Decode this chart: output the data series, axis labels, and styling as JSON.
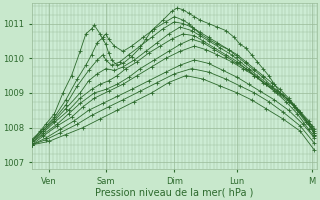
{
  "xlabel": "Pression niveau de la mer( hPa )",
  "bg_color": "#c8e8cc",
  "plot_bg_color": "#ccecd4",
  "line_color": "#2d6a2d",
  "grid_color": "#99bb99",
  "tick_color": "#2d6a2d",
  "ylim": [
    1006.8,
    1011.6
  ],
  "xlim": [
    0,
    5.0
  ],
  "yticks": [
    1007,
    1008,
    1009,
    1010,
    1011
  ],
  "xtick_labels": [
    "Ven",
    "Sam",
    "Dim",
    "Lun",
    "M"
  ],
  "xtick_positions": [
    0.3,
    1.3,
    2.5,
    3.6,
    4.9
  ],
  "series": [
    {
      "x": [
        0.0,
        0.15,
        0.25,
        0.4,
        0.55,
        0.7,
        0.85,
        0.95,
        1.05,
        1.1,
        1.2,
        1.25,
        1.3,
        1.35,
        1.4,
        1.5,
        1.6,
        1.75,
        1.9,
        2.0,
        2.1,
        2.3,
        2.45,
        2.55,
        2.65,
        2.75,
        2.85,
        2.95,
        3.1,
        3.25,
        3.4,
        3.55,
        3.65,
        3.75,
        3.85,
        3.95,
        4.05,
        4.15,
        4.25,
        4.35,
        4.5,
        4.65,
        4.85,
        4.95
      ],
      "y": [
        1007.6,
        1007.9,
        1008.1,
        1008.4,
        1009.0,
        1009.5,
        1010.2,
        1010.7,
        1010.85,
        1010.95,
        1010.7,
        1010.55,
        1010.4,
        1010.15,
        1009.95,
        1009.8,
        1009.85,
        1010.05,
        1010.3,
        1010.55,
        1010.8,
        1011.1,
        1011.35,
        1011.45,
        1011.4,
        1011.3,
        1011.2,
        1011.1,
        1011.0,
        1010.9,
        1010.8,
        1010.6,
        1010.4,
        1010.3,
        1010.1,
        1009.9,
        1009.7,
        1009.5,
        1009.25,
        1009.0,
        1008.8,
        1008.5,
        1008.1,
        1007.8
      ]
    },
    {
      "x": [
        0.0,
        0.2,
        0.4,
        0.6,
        0.8,
        0.95,
        1.05,
        1.15,
        1.25,
        1.3,
        1.35,
        1.45,
        1.6,
        1.75,
        1.95,
        2.15,
        2.35,
        2.5,
        2.65,
        2.75,
        2.85,
        2.95,
        3.1,
        3.25,
        3.45,
        3.6,
        3.75,
        3.9,
        4.05,
        4.2,
        4.35,
        4.5,
        4.65,
        4.85,
        4.95
      ],
      "y": [
        1007.65,
        1007.95,
        1008.3,
        1008.8,
        1009.4,
        1009.8,
        1010.1,
        1010.45,
        1010.6,
        1010.7,
        1010.55,
        1010.35,
        1010.2,
        1010.35,
        1010.6,
        1010.85,
        1011.05,
        1011.2,
        1011.1,
        1011.0,
        1010.85,
        1010.7,
        1010.55,
        1010.4,
        1010.25,
        1010.1,
        1009.9,
        1009.7,
        1009.5,
        1009.3,
        1009.1,
        1008.85,
        1008.55,
        1008.1,
        1007.85
      ]
    },
    {
      "x": [
        0.0,
        0.2,
        0.4,
        0.6,
        0.8,
        1.0,
        1.15,
        1.25,
        1.3,
        1.4,
        1.55,
        1.7,
        1.9,
        2.1,
        2.3,
        2.5,
        2.65,
        2.8,
        2.95,
        3.1,
        3.25,
        3.45,
        3.6,
        3.75,
        3.9,
        4.05,
        4.2,
        4.4,
        4.6,
        4.8,
        4.95
      ],
      "y": [
        1007.6,
        1007.9,
        1008.25,
        1008.65,
        1009.2,
        1009.65,
        1009.95,
        1010.1,
        1009.95,
        1009.8,
        1009.9,
        1010.1,
        1010.35,
        1010.6,
        1010.85,
        1011.05,
        1011.0,
        1010.9,
        1010.75,
        1010.6,
        1010.45,
        1010.25,
        1010.05,
        1009.85,
        1009.65,
        1009.45,
        1009.2,
        1008.95,
        1008.6,
        1008.15,
        1007.9
      ]
    },
    {
      "x": [
        0.0,
        0.2,
        0.4,
        0.6,
        0.85,
        1.0,
        1.15,
        1.3,
        1.45,
        1.6,
        1.8,
        2.0,
        2.2,
        2.4,
        2.6,
        2.8,
        2.95,
        3.1,
        3.3,
        3.5,
        3.65,
        3.8,
        3.95,
        4.1,
        4.3,
        4.5,
        4.7,
        4.9,
        4.95
      ],
      "y": [
        1007.6,
        1007.9,
        1008.2,
        1008.55,
        1009.0,
        1009.35,
        1009.55,
        1009.7,
        1009.65,
        1009.75,
        1009.95,
        1010.2,
        1010.45,
        1010.7,
        1010.9,
        1010.8,
        1010.65,
        1010.5,
        1010.3,
        1010.1,
        1009.9,
        1009.7,
        1009.5,
        1009.3,
        1009.05,
        1008.8,
        1008.45,
        1008.0,
        1007.85
      ]
    },
    {
      "x": [
        0.0,
        0.2,
        0.4,
        0.65,
        0.85,
        1.05,
        1.2,
        1.35,
        1.5,
        1.65,
        1.85,
        2.05,
        2.25,
        2.45,
        2.65,
        2.85,
        3.0,
        3.2,
        3.4,
        3.6,
        3.75,
        3.9,
        4.05,
        4.25,
        4.45,
        4.65,
        4.85,
        4.95
      ],
      "y": [
        1007.55,
        1007.85,
        1008.15,
        1008.5,
        1008.85,
        1009.1,
        1009.25,
        1009.35,
        1009.5,
        1009.7,
        1009.9,
        1010.15,
        1010.35,
        1010.55,
        1010.7,
        1010.65,
        1010.5,
        1010.3,
        1010.1,
        1009.9,
        1009.7,
        1009.5,
        1009.3,
        1009.05,
        1008.75,
        1008.4,
        1007.95,
        1007.75
      ]
    },
    {
      "x": [
        0.0,
        0.2,
        0.45,
        0.65,
        0.85,
        1.1,
        1.3,
        1.5,
        1.7,
        1.9,
        2.15,
        2.4,
        2.6,
        2.8,
        3.0,
        3.2,
        3.4,
        3.6,
        3.8,
        3.95,
        4.1,
        4.3,
        4.5,
        4.7,
        4.9,
        4.95
      ],
      "y": [
        1007.55,
        1007.8,
        1008.1,
        1008.4,
        1008.7,
        1009.0,
        1009.1,
        1009.25,
        1009.45,
        1009.7,
        1009.95,
        1010.2,
        1010.4,
        1010.55,
        1010.45,
        1010.25,
        1010.05,
        1009.85,
        1009.65,
        1009.45,
        1009.25,
        1009.0,
        1008.75,
        1008.45,
        1008.05,
        1007.8
      ]
    },
    {
      "x": [
        0.0,
        0.2,
        0.45,
        0.7,
        0.9,
        1.1,
        1.35,
        1.6,
        1.85,
        2.1,
        2.35,
        2.6,
        2.85,
        3.05,
        3.25,
        3.5,
        3.7,
        3.9,
        4.1,
        4.35,
        4.6,
        4.85,
        4.95
      ],
      "y": [
        1007.5,
        1007.75,
        1008.05,
        1008.3,
        1008.6,
        1008.85,
        1009.05,
        1009.25,
        1009.5,
        1009.75,
        1010.0,
        1010.2,
        1010.35,
        1010.25,
        1010.1,
        1009.9,
        1009.7,
        1009.5,
        1009.25,
        1009.0,
        1008.65,
        1008.2,
        1007.95
      ]
    },
    {
      "x": [
        0.0,
        0.25,
        0.5,
        0.75,
        1.0,
        1.25,
        1.5,
        1.75,
        2.05,
        2.35,
        2.6,
        2.85,
        3.1,
        3.35,
        3.6,
        3.8,
        4.0,
        4.25,
        4.5,
        4.75,
        4.95
      ],
      "y": [
        1007.5,
        1007.7,
        1007.95,
        1008.2,
        1008.5,
        1008.7,
        1008.9,
        1009.1,
        1009.35,
        1009.6,
        1009.8,
        1009.95,
        1009.85,
        1009.65,
        1009.45,
        1009.25,
        1009.05,
        1008.8,
        1008.5,
        1008.1,
        1007.7
      ]
    },
    {
      "x": [
        0.0,
        0.25,
        0.5,
        0.8,
        1.05,
        1.35,
        1.6,
        1.9,
        2.2,
        2.5,
        2.8,
        3.1,
        3.4,
        3.65,
        3.9,
        4.15,
        4.4,
        4.7,
        4.95
      ],
      "y": [
        1007.5,
        1007.65,
        1007.85,
        1008.1,
        1008.35,
        1008.6,
        1008.8,
        1009.05,
        1009.3,
        1009.55,
        1009.7,
        1009.6,
        1009.4,
        1009.2,
        1009.0,
        1008.75,
        1008.45,
        1008.05,
        1007.55
      ]
    },
    {
      "x": [
        0.0,
        0.3,
        0.6,
        0.9,
        1.2,
        1.5,
        1.8,
        2.1,
        2.4,
        2.7,
        3.0,
        3.3,
        3.6,
        3.85,
        4.1,
        4.4,
        4.7,
        4.95
      ],
      "y": [
        1007.5,
        1007.6,
        1007.8,
        1008.0,
        1008.25,
        1008.5,
        1008.75,
        1009.0,
        1009.3,
        1009.5,
        1009.4,
        1009.2,
        1009.0,
        1008.8,
        1008.55,
        1008.25,
        1007.9,
        1007.35
      ]
    }
  ]
}
